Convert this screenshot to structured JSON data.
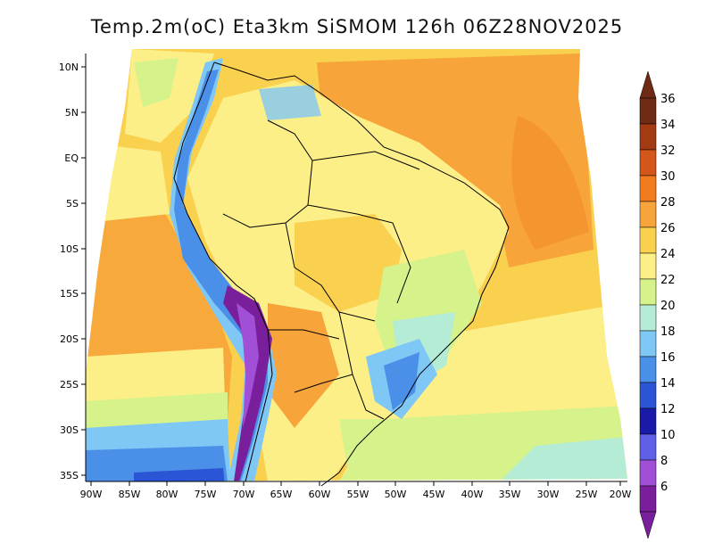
{
  "title": "Temp.2m(oC) Eta3km SiSMOM 126h 06Z28NOV2025",
  "map": {
    "lat_labels": [
      "10N",
      "5N",
      "EQ",
      "5S",
      "10S",
      "15S",
      "20S",
      "25S",
      "30S",
      "35S"
    ],
    "lon_labels": [
      "90W",
      "85W",
      "80W",
      "75W",
      "70W",
      "65W",
      "60W",
      "55W",
      "50W",
      "45W",
      "40W",
      "35W",
      "30W",
      "25W",
      "20W"
    ]
  },
  "colorbar": {
    "labels": [
      "36",
      "34",
      "32",
      "30",
      "28",
      "26",
      "24",
      "22",
      "20",
      "18",
      "16",
      "14",
      "12",
      "10",
      "8",
      "6"
    ],
    "colors": [
      "#6e2a14",
      "#a33a12",
      "#d4561a",
      "#f27a1f",
      "#f7a43a",
      "#fad04f",
      "#fcef88",
      "#d6f28a",
      "#b4ecd6",
      "#7fc7f5",
      "#4a8fe8",
      "#2b55d4",
      "#1a1aa8",
      "#5f5fe8",
      "#a14fd6",
      "#7a1f9c"
    ]
  }
}
